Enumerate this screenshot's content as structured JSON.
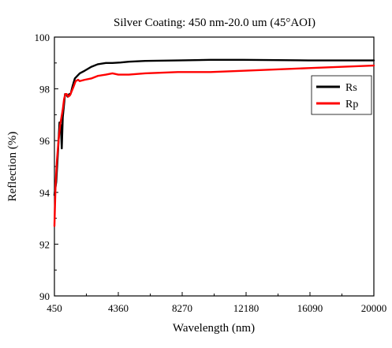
{
  "chart_data": {
    "type": "line",
    "title": "Silver Coating: 450 nm-20.0 um (45°AOI)",
    "xlabel": "Wavelength (nm)",
    "ylabel": "Reflection (%)",
    "xlim": [
      450,
      20000
    ],
    "ylim": [
      90,
      100
    ],
    "x_ticks": [
      450,
      4360,
      8270,
      12180,
      16090,
      20000
    ],
    "x_tick_labels": [
      "450",
      "4360",
      "8270",
      "12180",
      "16090",
      "20000"
    ],
    "y_ticks": [
      90,
      92,
      94,
      96,
      98,
      100
    ],
    "y_tick_labels": [
      "90",
      "92",
      "94",
      "96",
      "98",
      "100"
    ],
    "grid": false,
    "legend_position": "top-right",
    "series": [
      {
        "name": "Rs",
        "color": "#000000",
        "x": [
          450,
          560,
          680,
          760,
          840,
          900,
          960,
          1040,
          1100,
          1160,
          1260,
          1360,
          1440,
          1560,
          1700,
          1850,
          2000,
          2300,
          2700,
          3100,
          3600,
          4000,
          4500,
          5000,
          6000,
          8000,
          10000,
          12000,
          16000,
          20000
        ],
        "y": [
          93.9,
          94.4,
          95.7,
          96.7,
          96.6,
          95.7,
          96.9,
          97.4,
          97.8,
          97.8,
          97.7,
          97.8,
          97.8,
          98.1,
          98.4,
          98.5,
          98.6,
          98.7,
          98.85,
          98.95,
          99.0,
          99.0,
          99.02,
          99.05,
          99.08,
          99.1,
          99.12,
          99.12,
          99.1,
          99.1
        ]
      },
      {
        "name": "Rp",
        "color": "#ff0000",
        "x": [
          450,
          520,
          600,
          700,
          800,
          880,
          960,
          1040,
          1120,
          1200,
          1300,
          1400,
          1500,
          1600,
          1750,
          1900,
          2000,
          2300,
          2700,
          3100,
          3600,
          4000,
          4360,
          5000,
          6000,
          8000,
          10000,
          12000,
          16000,
          20000
        ],
        "y": [
          92.7,
          94.3,
          95.2,
          96.0,
          96.6,
          96.9,
          97.2,
          97.6,
          97.8,
          97.8,
          97.7,
          97.75,
          97.9,
          98.05,
          98.3,
          98.35,
          98.3,
          98.35,
          98.4,
          98.5,
          98.55,
          98.6,
          98.55,
          98.55,
          98.6,
          98.65,
          98.65,
          98.7,
          98.8,
          98.9
        ]
      }
    ]
  }
}
